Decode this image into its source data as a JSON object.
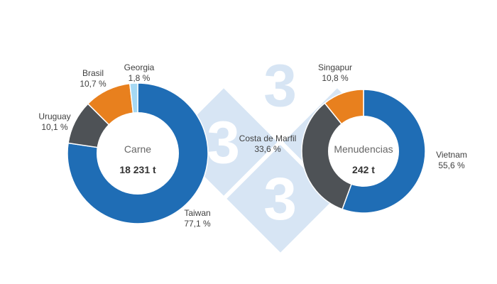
{
  "watermark": {
    "digit": "3",
    "diamond_color": "#D7E5F4"
  },
  "chart_data": [
    {
      "type": "donut",
      "title": "Carne",
      "center_value": "18 231 t",
      "slices": [
        {
          "label": "Taiwan",
          "value": 77.1,
          "pct_label": "77,1 %",
          "color": "#1F6DB5"
        },
        {
          "label": "Uruguay",
          "value": 10.1,
          "pct_label": "10,1 %",
          "color": "#4E5256"
        },
        {
          "label": "Brasil",
          "value": 10.7,
          "pct_label": "10,7 %",
          "color": "#E8801E"
        },
        {
          "label": "Georgia",
          "value": 1.8,
          "pct_label": "1,8 %",
          "color": "#A5D8F3"
        }
      ]
    },
    {
      "type": "donut",
      "title": "Menudencias",
      "center_value": "242 t",
      "slices": [
        {
          "label": "Vietnam",
          "value": 55.6,
          "pct_label": "55,6 %",
          "color": "#1F6DB5"
        },
        {
          "label": "Costa de Marfil",
          "value": 33.6,
          "pct_label": "33,6 %",
          "color": "#4E5256"
        },
        {
          "label": "Singapur",
          "value": 10.8,
          "pct_label": "10,8 %",
          "color": "#E8801E"
        }
      ]
    }
  ]
}
